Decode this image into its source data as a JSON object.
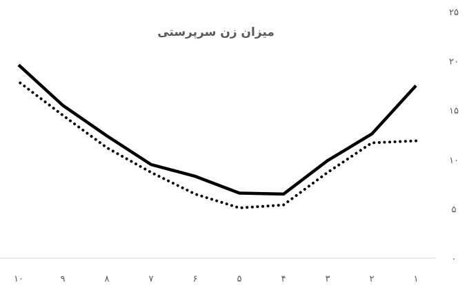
{
  "chart_data": {
    "type": "line",
    "title": "میزان زن سرپرستی",
    "categories": [
      "۱",
      "۲",
      "۳",
      "۴",
      "۵",
      "۶",
      "۷",
      "۸",
      "۹",
      "۱۰"
    ],
    "x_direction": "right-to-left",
    "y_axis_position": "right",
    "y_ticks": [
      "۰",
      "۵",
      "۱۰",
      "۱۵",
      "۲۰",
      "۲۵"
    ],
    "ylim": [
      0,
      25
    ],
    "grid": false,
    "series": [
      {
        "style": "solid",
        "color": "#000000",
        "values": [
          17.5,
          12.6,
          9.9,
          6.5,
          6.6,
          8.3,
          9.5,
          12.4,
          15.5,
          19.6
        ]
      },
      {
        "style": "dotted",
        "color": "#000000",
        "values": [
          11.9,
          11.7,
          8.7,
          5.4,
          5.1,
          6.5,
          8.7,
          11.2,
          14.5,
          17.9
        ]
      }
    ],
    "xlabel": "",
    "ylabel": ""
  }
}
